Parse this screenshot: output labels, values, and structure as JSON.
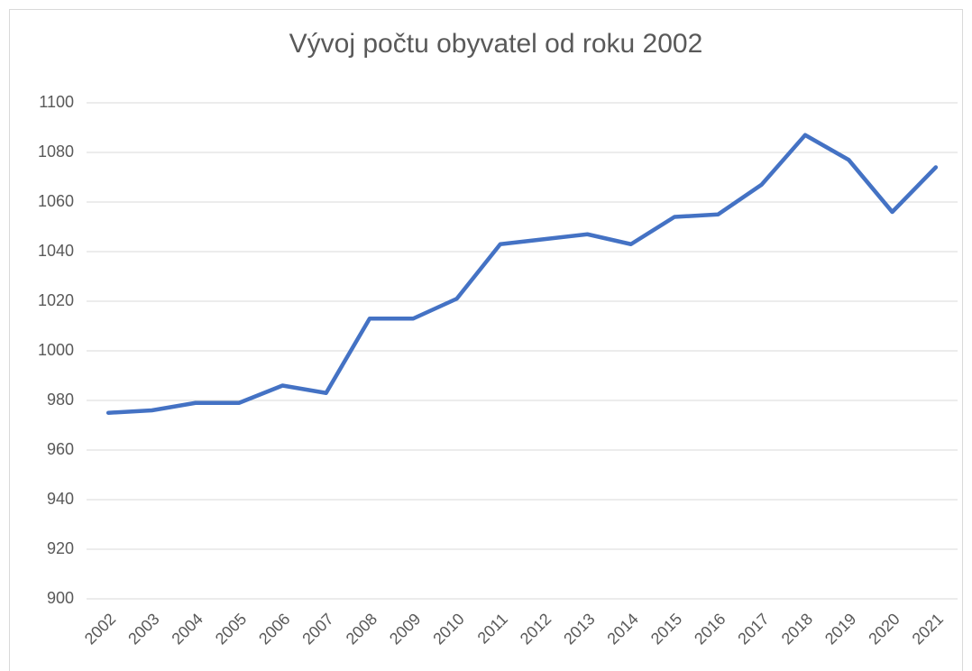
{
  "chart_data": {
    "type": "line",
    "title": "Vývoj počtu obyvatel od roku 2002",
    "categories": [
      "2002",
      "2003",
      "2004",
      "2005",
      "2006",
      "2007",
      "2008",
      "2009",
      "2010",
      "2011",
      "2012",
      "2013",
      "2014",
      "2015",
      "2016",
      "2017",
      "2018",
      "2019",
      "2020",
      "2021"
    ],
    "values": [
      975,
      976,
      979,
      979,
      986,
      983,
      1013,
      1013,
      1021,
      1043,
      1045,
      1047,
      1043,
      1054,
      1055,
      1067,
      1087,
      1077,
      1056,
      1074
    ],
    "color": "#4472c4",
    "ylim": [
      900,
      1100
    ],
    "yticks": [
      900,
      920,
      940,
      960,
      980,
      1000,
      1020,
      1040,
      1060,
      1080,
      1100
    ],
    "grid": true
  }
}
